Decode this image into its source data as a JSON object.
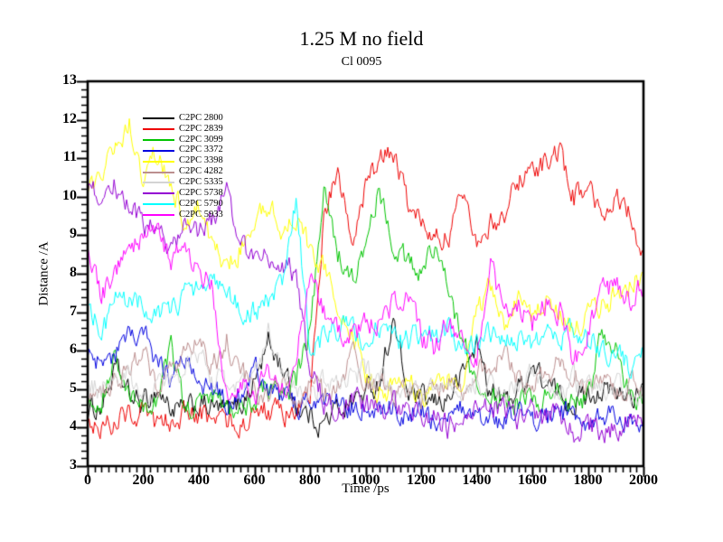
{
  "title": "1.25 M no field",
  "subtitle": "Cl 0095",
  "x_axis": {
    "label": "Time /ps",
    "tick_labels": [
      "0",
      "200",
      "400",
      "600",
      "800",
      "1000",
      "1200",
      "1400",
      "1600",
      "1800",
      "2000"
    ]
  },
  "y_axis": {
    "label": "Distance /A",
    "tick_labels": [
      "3",
      "4",
      "5",
      "6",
      "7",
      "8",
      "9",
      "10",
      "11",
      "12",
      "13"
    ]
  },
  "chart_data": {
    "type": "line",
    "title": "1.25 M no field",
    "subtitle": "Cl 0095",
    "xlabel": "Time /ps",
    "ylabel": "Distance /A",
    "xlim": [
      0,
      2000
    ],
    "ylim": [
      3,
      13
    ],
    "x_major_tick": 200,
    "x_minor_tick": 25,
    "y_major_tick": 1,
    "y_minor_tick": 0.2,
    "grid": false,
    "legend_position": "upper-left-inside",
    "x": [
      0,
      50,
      100,
      150,
      200,
      250,
      300,
      350,
      400,
      450,
      500,
      550,
      600,
      650,
      700,
      750,
      800,
      850,
      900,
      950,
      1000,
      1050,
      1100,
      1150,
      1200,
      1250,
      1300,
      1350,
      1400,
      1450,
      1500,
      1550,
      1600,
      1650,
      1700,
      1750,
      1800,
      1850,
      1900,
      1950,
      2000
    ],
    "series": [
      {
        "name": "C2PC 2800",
        "color": "#000000",
        "values": [
          4.4,
          4.6,
          5.5,
          4.8,
          4.6,
          5.0,
          4.5,
          4.4,
          4.6,
          4.5,
          4.4,
          4.6,
          5.2,
          6.2,
          5.6,
          4.6,
          4.3,
          4.1,
          4.5,
          4.7,
          4.9,
          5.2,
          6.8,
          4.9,
          4.7,
          4.6,
          4.8,
          5.4,
          6.2,
          4.9,
          4.7,
          5.0,
          5.6,
          5.1,
          4.8,
          4.7,
          4.9,
          5.0,
          4.8,
          4.9,
          4.8
        ]
      },
      {
        "name": "C2PC 2839",
        "color": "#ee0000",
        "values": [
          4.3,
          4.0,
          4.2,
          4.4,
          4.3,
          4.0,
          4.2,
          4.4,
          4.2,
          4.3,
          4.2,
          4.1,
          4.3,
          4.5,
          4.3,
          4.4,
          4.8,
          9.5,
          10.6,
          8.9,
          10.2,
          10.9,
          11.2,
          9.8,
          9.3,
          9.2,
          8.9,
          10.1,
          9.0,
          9.3,
          9.6,
          10.4,
          10.7,
          10.9,
          11.1,
          10.0,
          10.2,
          9.4,
          9.9,
          9.6,
          8.5
        ]
      },
      {
        "name": "C2PC 3099",
        "color": "#00c400",
        "values": [
          4.6,
          4.8,
          5.8,
          4.7,
          4.5,
          4.8,
          6.0,
          4.4,
          4.6,
          4.9,
          4.7,
          4.5,
          4.8,
          5.0,
          4.7,
          5.2,
          6.5,
          10.0,
          8.6,
          7.8,
          8.6,
          10.2,
          8.8,
          8.3,
          8.0,
          8.8,
          7.5,
          6.3,
          4.9,
          4.8,
          4.7,
          4.6,
          4.8,
          4.7,
          4.9,
          4.6,
          4.8,
          6.4,
          6.1,
          4.8,
          4.6
        ]
      },
      {
        "name": "C2PC 3372",
        "color": "#0000e0",
        "values": [
          5.8,
          5.6,
          5.9,
          6.3,
          6.4,
          5.6,
          5.3,
          5.9,
          5.2,
          5.0,
          4.8,
          4.9,
          5.8,
          4.9,
          4.7,
          4.6,
          4.8,
          4.5,
          4.7,
          4.5,
          4.6,
          4.4,
          4.5,
          4.3,
          4.4,
          4.2,
          4.3,
          4.4,
          4.2,
          4.3,
          4.2,
          4.4,
          4.3,
          4.2,
          4.4,
          4.3,
          4.2,
          4.4,
          4.3,
          4.2,
          4.3
        ]
      },
      {
        "name": "C2PC 3398",
        "color": "#ffff00",
        "values": [
          9.9,
          10.8,
          11.4,
          11.9,
          10.5,
          11.2,
          10.3,
          9.4,
          9.8,
          8.8,
          8.0,
          8.7,
          9.1,
          9.8,
          9.2,
          9.5,
          8.6,
          8.2,
          7.2,
          6.7,
          5.3,
          5.0,
          4.9,
          5.1,
          4.9,
          5.0,
          5.2,
          5.4,
          6.8,
          7.7,
          6.5,
          7.4,
          6.8,
          7.4,
          7.0,
          6.4,
          6.8,
          7.2,
          7.4,
          7.7,
          8.0
        ]
      },
      {
        "name": "C2PC 4282",
        "color": "#bc8f8f",
        "values": [
          5.0,
          4.8,
          5.2,
          5.6,
          5.9,
          5.1,
          5.4,
          6.0,
          6.2,
          5.6,
          6.3,
          5.4,
          5.0,
          4.9,
          5.2,
          4.9,
          5.1,
          4.8,
          5.0,
          6.0,
          5.2,
          5.0,
          4.9,
          5.1,
          4.8,
          5.0,
          5.2,
          4.9,
          5.4,
          5.7,
          5.9,
          5.3,
          5.1,
          5.4,
          5.6,
          5.5,
          5.0,
          5.2,
          4.9,
          5.1,
          4.9
        ]
      },
      {
        "name": "C2PC 5335",
        "color": "#d4d4d4",
        "values": [
          5.2,
          5.0,
          5.6,
          5.3,
          5.0,
          4.9,
          5.2,
          5.5,
          5.7,
          5.4,
          5.1,
          5.0,
          5.3,
          6.5,
          5.4,
          5.0,
          4.9,
          5.1,
          5.0,
          5.3,
          5.5,
          5.2,
          5.0,
          4.9,
          5.1,
          4.8,
          5.0,
          4.9,
          5.2,
          5.0,
          4.9,
          5.1,
          5.3,
          5.0,
          4.9,
          5.2,
          5.0,
          4.8,
          5.0,
          4.9,
          5.0
        ]
      },
      {
        "name": "C2PC 5738",
        "color": "#9400d3",
        "values": [
          10.2,
          10.0,
          10.3,
          9.7,
          9.3,
          9.0,
          8.8,
          9.2,
          9.0,
          9.3,
          10.3,
          8.6,
          8.4,
          8.6,
          8.3,
          8.0,
          5.5,
          4.7,
          4.5,
          4.7,
          4.6,
          4.5,
          4.6,
          4.4,
          4.5,
          4.2,
          4.0,
          4.4,
          4.5,
          4.6,
          4.4,
          4.3,
          4.5,
          4.2,
          4.4,
          3.9,
          4.1,
          3.9,
          4.0,
          4.2,
          4.2
        ]
      },
      {
        "name": "C2PC 5790",
        "color": "#00ffff",
        "values": [
          7.3,
          6.5,
          7.2,
          7.4,
          7.3,
          6.9,
          7.1,
          7.5,
          7.7,
          7.8,
          7.5,
          7.2,
          7.0,
          7.4,
          7.6,
          10.0,
          5.9,
          6.3,
          6.6,
          6.5,
          6.3,
          6.6,
          6.4,
          6.2,
          6.5,
          6.3,
          6.6,
          6.1,
          6.3,
          6.5,
          6.4,
          6.3,
          6.1,
          6.4,
          6.2,
          6.5,
          6.3,
          6.0,
          5.8,
          5.6,
          5.8
        ]
      },
      {
        "name": "C2PC 5933",
        "color": "#ff00ff",
        "values": [
          8.7,
          7.4,
          8.2,
          8.5,
          9.0,
          9.4,
          8.3,
          8.8,
          8.1,
          7.6,
          4.9,
          5.2,
          4.8,
          5.3,
          5.0,
          5.6,
          8.2,
          7.0,
          6.6,
          6.4,
          6.6,
          6.8,
          7.2,
          7.6,
          6.4,
          6.0,
          6.9,
          6.2,
          5.9,
          8.2,
          7.0,
          7.2,
          6.7,
          7.3,
          7.0,
          5.6,
          6.6,
          7.4,
          7.7,
          7.3,
          7.7
        ]
      }
    ]
  }
}
